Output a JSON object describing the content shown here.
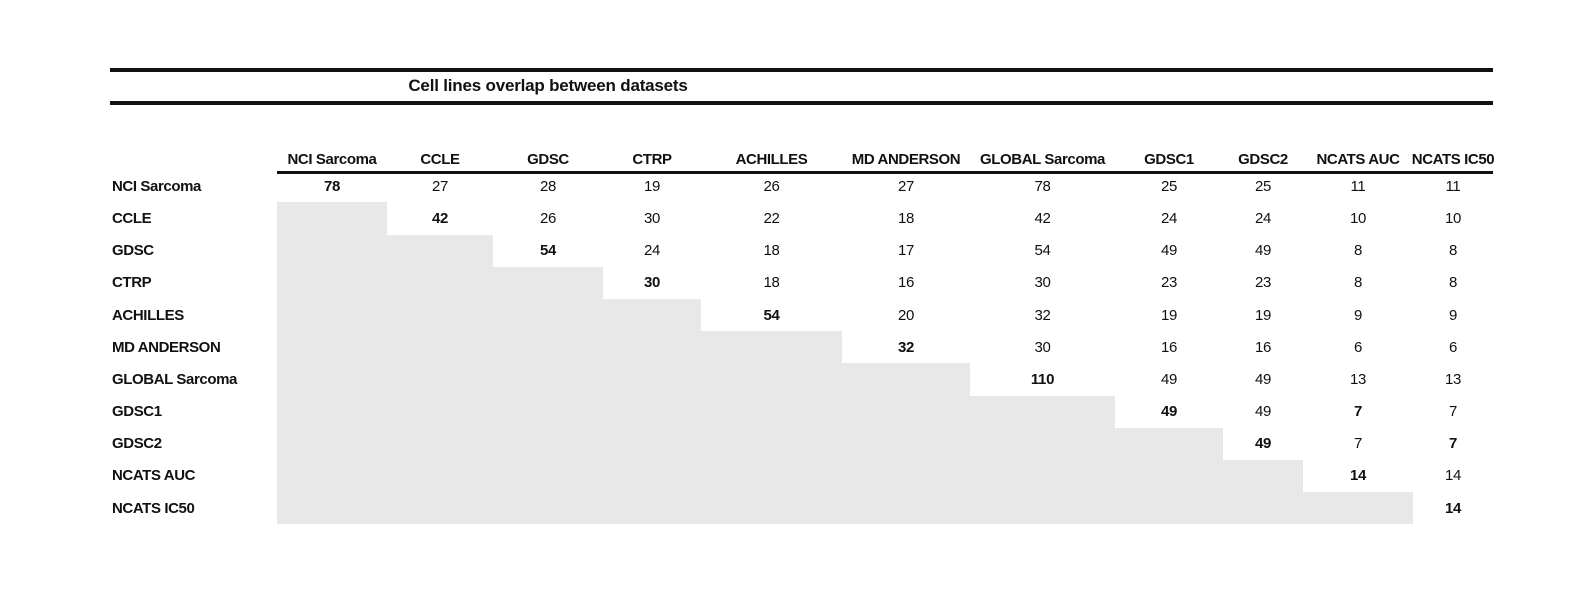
{
  "title": "Cell lines overlap between datasets",
  "chart_data": {
    "type": "table",
    "title": "Cell lines overlap between datasets",
    "description": "Upper-triangular matrix of cell line overlap counts between datasets; lower triangle is shaded gray, diagonal values are bold.",
    "columns": [
      "NCI Sarcoma",
      "CCLE",
      "GDSC",
      "CTRP",
      "ACHILLES",
      "MD ANDERSON",
      "GLOBAL Sarcoma",
      "GDSC1",
      "GDSC2",
      "NCATS AUC",
      "NCATS IC50"
    ],
    "rows": [
      {
        "label": "NCI Sarcoma",
        "values": [
          "78",
          "27",
          "28",
          "19",
          "26",
          "27",
          "78",
          "25",
          "25",
          "11",
          "11"
        ],
        "bold": [
          0
        ]
      },
      {
        "label": "CCLE",
        "values": [
          null,
          "42",
          "26",
          "30",
          "22",
          "18",
          "42",
          "24",
          "24",
          "10",
          "10"
        ],
        "bold": [
          1
        ]
      },
      {
        "label": "GDSC",
        "values": [
          null,
          null,
          "54",
          "24",
          "18",
          "17",
          "54",
          "49",
          "49",
          "8",
          "8"
        ],
        "bold": [
          2
        ]
      },
      {
        "label": "CTRP",
        "values": [
          null,
          null,
          null,
          "30",
          "18",
          "16",
          "30",
          "23",
          "23",
          "8",
          "8"
        ],
        "bold": [
          3
        ]
      },
      {
        "label": "ACHILLES",
        "values": [
          null,
          null,
          null,
          null,
          "54",
          "20",
          "32",
          "19",
          "19",
          "9",
          "9"
        ],
        "bold": [
          4
        ]
      },
      {
        "label": "MD ANDERSON",
        "values": [
          null,
          null,
          null,
          null,
          null,
          "32",
          "30",
          "16",
          "16",
          "6",
          "6"
        ],
        "bold": [
          5
        ]
      },
      {
        "label": "GLOBAL Sarcoma",
        "values": [
          null,
          null,
          null,
          null,
          null,
          null,
          "110",
          "49",
          "49",
          "13",
          "13"
        ],
        "bold": [
          6
        ]
      },
      {
        "label": "GDSC1",
        "values": [
          null,
          null,
          null,
          null,
          null,
          null,
          null,
          "49",
          "49",
          "7",
          "7"
        ],
        "bold": [
          7,
          9
        ]
      },
      {
        "label": "GDSC2",
        "values": [
          null,
          null,
          null,
          null,
          null,
          null,
          null,
          null,
          "49",
          "7",
          "7"
        ],
        "bold": [
          8,
          10
        ]
      },
      {
        "label": "NCATS AUC",
        "values": [
          null,
          null,
          null,
          null,
          null,
          null,
          null,
          null,
          null,
          "14",
          "14"
        ],
        "bold": [
          9
        ]
      },
      {
        "label": "NCATS IC50",
        "values": [
          null,
          null,
          null,
          null,
          null,
          null,
          null,
          null,
          null,
          null,
          "14"
        ],
        "bold": [
          10
        ]
      }
    ],
    "colors": {
      "lower_triangle_fill": "#e8e8e8",
      "rule": "#111111",
      "text": "#111111"
    },
    "layout": {
      "legend": "none",
      "grid": "off",
      "diagonal_bold": true
    }
  }
}
